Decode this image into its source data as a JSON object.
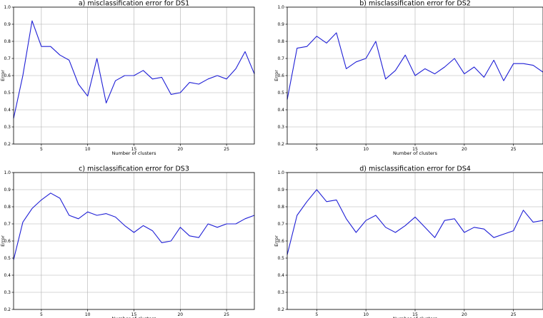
{
  "colors": {
    "series": "#1f1fd6",
    "grid": "#b0b0b0"
  },
  "chart_data": [
    {
      "type": "line",
      "title": "a)   misclassification error for DS1",
      "xlabel": "Number of clusters",
      "ylabel": "Error",
      "xlim": [
        2,
        28
      ],
      "ylim": [
        0.2,
        1.0
      ],
      "xticks": [
        5,
        10,
        15,
        20,
        25
      ],
      "yticks": [
        0.2,
        0.3,
        0.4,
        0.5,
        0.6,
        0.7,
        0.8,
        0.9,
        1.0
      ],
      "grid": true,
      "x": [
        2,
        3,
        4,
        5,
        6,
        7,
        8,
        9,
        10,
        11,
        12,
        13,
        14,
        15,
        16,
        17,
        18,
        19,
        20,
        21,
        22,
        23,
        24,
        25,
        26,
        27,
        28
      ],
      "series": [
        {
          "values": [
            0.35,
            0.6,
            0.92,
            0.77,
            0.77,
            0.72,
            0.69,
            0.55,
            0.48,
            0.7,
            0.44,
            0.57,
            0.6,
            0.6,
            0.63,
            0.58,
            0.59,
            0.49,
            0.5,
            0.56,
            0.55,
            0.58,
            0.6,
            0.58,
            0.64,
            0.74,
            0.61
          ]
        }
      ]
    },
    {
      "type": "line",
      "title": "b)   misclassification error for DS2",
      "xlabel": "Number of clusters",
      "ylabel": "Error",
      "xlim": [
        2,
        28
      ],
      "ylim": [
        0.2,
        1.0
      ],
      "xticks": [
        5,
        10,
        15,
        20,
        25
      ],
      "yticks": [
        0.2,
        0.3,
        0.4,
        0.5,
        0.6,
        0.7,
        0.8,
        0.9,
        1.0
      ],
      "grid": true,
      "x": [
        2,
        3,
        4,
        5,
        6,
        7,
        8,
        9,
        10,
        11,
        12,
        13,
        14,
        15,
        16,
        17,
        18,
        19,
        20,
        21,
        22,
        23,
        24,
        25,
        26,
        27,
        28
      ],
      "series": [
        {
          "values": [
            0.46,
            0.76,
            0.77,
            0.83,
            0.79,
            0.85,
            0.64,
            0.68,
            0.7,
            0.8,
            0.58,
            0.63,
            0.72,
            0.6,
            0.64,
            0.61,
            0.65,
            0.7,
            0.61,
            0.65,
            0.59,
            0.69,
            0.57,
            0.67,
            0.67,
            0.66,
            0.62
          ]
        }
      ]
    },
    {
      "type": "line",
      "title": "c)   misclassification error for DS3",
      "xlabel": "Number of clusters",
      "ylabel": "Error",
      "xlim": [
        2,
        28
      ],
      "ylim": [
        0.2,
        1.0
      ],
      "xticks": [
        5,
        10,
        15,
        20,
        25
      ],
      "yticks": [
        0.2,
        0.3,
        0.4,
        0.5,
        0.6,
        0.7,
        0.8,
        0.9,
        1.0
      ],
      "grid": true,
      "x": [
        2,
        3,
        4,
        5,
        6,
        7,
        8,
        9,
        10,
        11,
        12,
        13,
        14,
        15,
        16,
        17,
        18,
        19,
        20,
        21,
        22,
        23,
        24,
        25,
        26,
        27,
        28
      ],
      "series": [
        {
          "values": [
            0.49,
            0.71,
            0.79,
            0.84,
            0.88,
            0.85,
            0.75,
            0.73,
            0.77,
            0.75,
            0.76,
            0.74,
            0.69,
            0.65,
            0.69,
            0.66,
            0.59,
            0.6,
            0.68,
            0.63,
            0.62,
            0.7,
            0.68,
            0.7,
            0.7,
            0.73,
            0.75
          ]
        }
      ]
    },
    {
      "type": "line",
      "title": "d)   misclassification error for DS4",
      "xlabel": "Number of clusters",
      "ylabel": "Error",
      "xlim": [
        2,
        28
      ],
      "ylim": [
        0.2,
        1.0
      ],
      "xticks": [
        5,
        10,
        15,
        20,
        25
      ],
      "yticks": [
        0.2,
        0.3,
        0.4,
        0.5,
        0.6,
        0.7,
        0.8,
        0.9,
        1.0
      ],
      "grid": true,
      "x": [
        2,
        3,
        4,
        5,
        6,
        7,
        8,
        9,
        10,
        11,
        12,
        13,
        14,
        15,
        16,
        17,
        18,
        19,
        20,
        21,
        22,
        23,
        24,
        25,
        26,
        27,
        28
      ],
      "series": [
        {
          "values": [
            0.52,
            0.75,
            0.83,
            0.9,
            0.83,
            0.84,
            0.73,
            0.65,
            0.72,
            0.75,
            0.68,
            0.65,
            0.69,
            0.74,
            0.68,
            0.62,
            0.72,
            0.73,
            0.65,
            0.68,
            0.67,
            0.62,
            0.64,
            0.66,
            0.78,
            0.71,
            0.72
          ]
        }
      ]
    }
  ]
}
